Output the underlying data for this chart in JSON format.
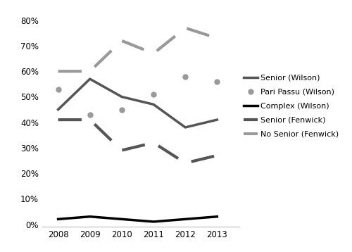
{
  "years": [
    2008,
    2009,
    2010,
    2011,
    2012,
    2013
  ],
  "senior_wilson": [
    0.45,
    0.57,
    0.5,
    0.47,
    0.38,
    0.41
  ],
  "pari_passu_wilson": [
    0.53,
    0.43,
    0.45,
    0.51,
    0.58,
    0.56
  ],
  "complex_wilson": [
    0.02,
    0.03,
    0.02,
    0.01,
    0.02,
    0.03
  ],
  "senior_fenwick": [
    0.41,
    0.41,
    0.29,
    0.32,
    0.24,
    0.27
  ],
  "no_senior_fenwick": [
    0.6,
    0.6,
    0.72,
    0.67,
    0.77,
    0.73
  ],
  "legend_labels": [
    "Senior (Wilson)",
    "Pari Passu (Wilson)",
    "Complex (Wilson)",
    "Senior (Fenwick)",
    "No Senior (Fenwick)"
  ],
  "yticks": [
    0.0,
    0.1,
    0.2,
    0.3,
    0.4,
    0.5,
    0.6,
    0.7,
    0.8
  ],
  "background_color": "#ffffff",
  "color_senior_wilson": "#555555",
  "color_pari_passu": "#999999",
  "color_complex": "#000000",
  "color_senior_fenwick": "#555555",
  "color_no_senior": "#999999"
}
